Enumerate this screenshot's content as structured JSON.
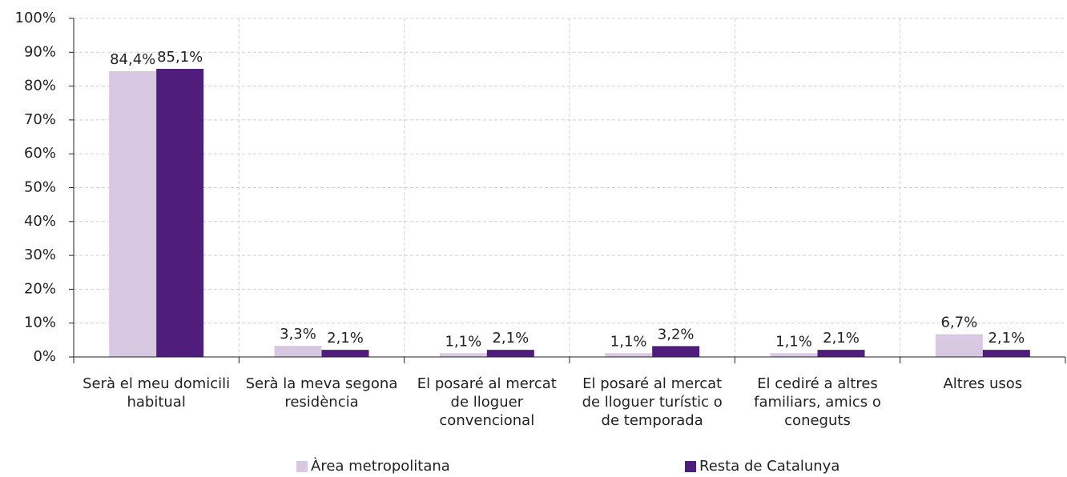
{
  "chart_data": {
    "type": "bar",
    "categories": [
      "Serà el meu domicili habitual",
      "Serà la meva segona residència",
      "El posaré al mercat de lloguer convencional",
      "El posaré al mercat de lloguer turístic o de temporada",
      "El cediré a altres familiars, amics o coneguts",
      "Altres usos"
    ],
    "series": [
      {
        "name": "Àrea metropolitana",
        "color": "#d8c8e2",
        "values": [
          84.4,
          3.3,
          1.1,
          1.1,
          1.1,
          6.7
        ],
        "value_labels": [
          "84,4%",
          "3,3%",
          "1,1%",
          "1,1%",
          "1,1%",
          "6,7%"
        ]
      },
      {
        "name": "Resta de Catalunya",
        "color": "#4f1d7c",
        "values": [
          85.1,
          2.1,
          2.1,
          3.2,
          2.1,
          2.1
        ],
        "value_labels": [
          "85,1%",
          "2,1%",
          "2,1%",
          "3,2%",
          "2,1%",
          "2,1%"
        ]
      }
    ],
    "ylim": [
      0,
      100
    ],
    "yticks": [
      {
        "value": 0,
        "label": "0%"
      },
      {
        "value": 10,
        "label": "10%"
      },
      {
        "value": 20,
        "label": "20%"
      },
      {
        "value": 30,
        "label": "30%"
      },
      {
        "value": 40,
        "label": "40%"
      },
      {
        "value": 50,
        "label": "50%"
      },
      {
        "value": 60,
        "label": "60%"
      },
      {
        "value": 70,
        "label": "70%"
      },
      {
        "value": 80,
        "label": "80%"
      },
      {
        "value": 90,
        "label": "90%"
      },
      {
        "value": 100,
        "label": "100%"
      }
    ],
    "grid": true,
    "legend": "bottom"
  }
}
